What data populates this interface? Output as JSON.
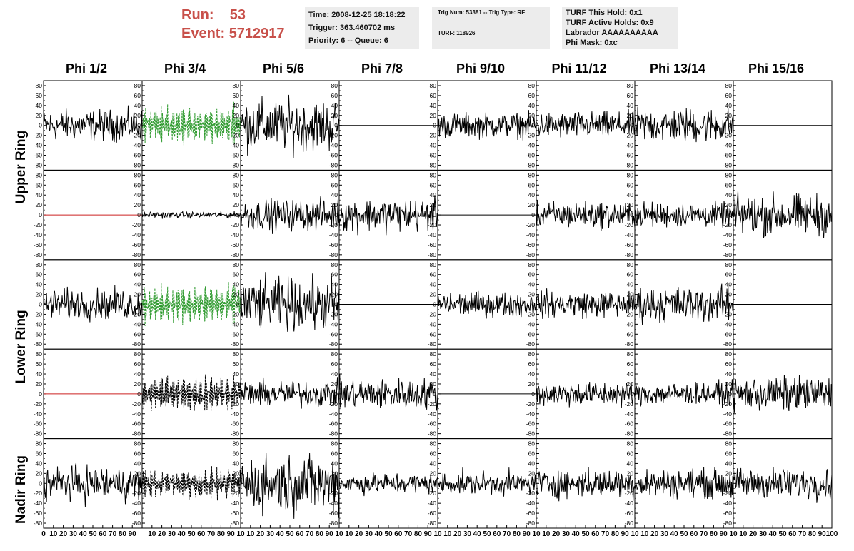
{
  "header": {
    "run_label": "Run:",
    "run_value": "53",
    "event_label": "Event:",
    "event_value": "5712917"
  },
  "info_box_1": {
    "time": "Time: 2008-12-25 18:18:22",
    "trigger": "Trigger: 363.460702 ms",
    "priority": "Priority: 6 -- Queue: 6"
  },
  "info_box_2": {
    "trig": "Trig Num: 53381 -- Trig Type: RF",
    "turf": "TURF: 118926"
  },
  "info_box_3": {
    "hold": "TURF This Hold: 0x1",
    "active": "TURF Active Holds: 0x9",
    "labrador": "Labrador AAAAAAAAAA",
    "phimask": "Phi Mask: 0xc"
  },
  "colors": {
    "normal": "#000000",
    "green_dashed": "#2e9a2e",
    "red_flat": "#cc2222",
    "black_flat": "#000000"
  },
  "chart_data": {
    "type": "line",
    "columns": [
      "Phi 1/2",
      "Phi 3/4",
      "Phi 5/6",
      "Phi 7/8",
      "Phi 9/10",
      "Phi 11/12",
      "Phi 13/14",
      "Phi 15/16"
    ],
    "rows": [
      "Upper Ring",
      "Lower Ring",
      "Nadir Ring"
    ],
    "y_ticks": [
      80,
      60,
      40,
      20,
      0,
      -20,
      -40,
      -60,
      -80
    ],
    "ylim": [
      -90,
      90
    ],
    "x_ticks_first": [
      "0",
      "10",
      "20",
      "30",
      "40",
      "50",
      "60",
      "70",
      "80",
      "90"
    ],
    "x_ticks": [
      "10",
      "20",
      "30",
      "40",
      "50",
      "60",
      "70",
      "80",
      "90",
      "10"
    ],
    "x_ticks_last": [
      "10",
      "20",
      "30",
      "40",
      "50",
      "60",
      "70",
      "80",
      "90",
      "100"
    ],
    "xlim": [
      0,
      100
    ],
    "panels": [
      [
        {
          "kind": "noise",
          "amp": 15
        },
        {
          "kind": "burst",
          "amp": 40,
          "color": "green_dashed"
        },
        {
          "kind": "noise",
          "amp": 25
        },
        {
          "kind": "flat",
          "color": "black_flat"
        },
        {
          "kind": "noise",
          "amp": 12
        },
        {
          "kind": "noise",
          "amp": 13
        },
        {
          "kind": "noise",
          "amp": 17
        },
        {
          "kind": "flat",
          "color": "black_flat"
        }
      ],
      [
        {
          "kind": "flat",
          "color": "red_flat"
        },
        {
          "kind": "noise",
          "amp": 3
        },
        {
          "kind": "noise",
          "amp": 15
        },
        {
          "kind": "noise",
          "amp": 16
        },
        {
          "kind": "flat",
          "color": "black_flat"
        },
        {
          "kind": "noise",
          "amp": 13
        },
        {
          "kind": "noise",
          "amp": 12
        },
        {
          "kind": "noise",
          "amp": 20
        }
      ],
      [
        {
          "kind": "noise",
          "amp": 15
        },
        {
          "kind": "burst",
          "amp": 40,
          "color": "green_dashed"
        },
        {
          "kind": "noise",
          "amp": 25
        },
        {
          "kind": "flat",
          "color": "black_flat"
        },
        {
          "kind": "noise",
          "amp": 12
        },
        {
          "kind": "noise",
          "amp": 13
        },
        {
          "kind": "noise",
          "amp": 17
        },
        {
          "kind": "flat",
          "color": "black_flat"
        }
      ],
      [
        {
          "kind": "flat",
          "color": "red_flat"
        },
        {
          "kind": "burst",
          "amp": 38,
          "color": "normal"
        },
        {
          "kind": "noise",
          "amp": 13
        },
        {
          "kind": "noise",
          "amp": 15
        },
        {
          "kind": "flat",
          "color": "black_flat"
        },
        {
          "kind": "noise",
          "amp": 12
        },
        {
          "kind": "noise",
          "amp": 11
        },
        {
          "kind": "noise",
          "amp": 17
        }
      ],
      [
        {
          "kind": "noise",
          "amp": 17
        },
        {
          "kind": "burst",
          "amp": 30,
          "color": "normal"
        },
        {
          "kind": "noise",
          "amp": 28
        },
        {
          "kind": "noise",
          "amp": 10
        },
        {
          "kind": "noise",
          "amp": 11
        },
        {
          "kind": "noise",
          "amp": 14
        },
        {
          "kind": "noise",
          "amp": 14
        },
        {
          "kind": "noise",
          "amp": 15
        }
      ]
    ]
  }
}
